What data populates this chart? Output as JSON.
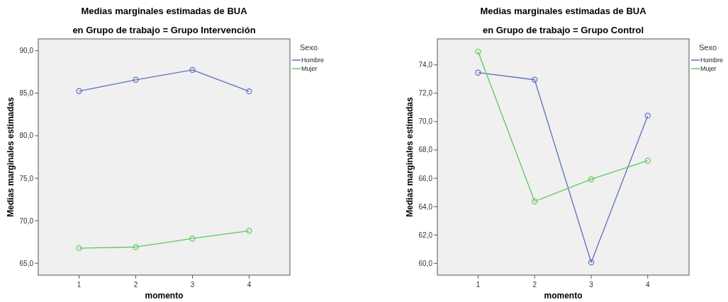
{
  "chart_data": [
    {
      "type": "line",
      "title": "Medias marginales estimadas de BUA",
      "subtitle": "en Grupo de trabajo = Grupo Intervención",
      "xlabel": "momento",
      "ylabel": "Medias marginales estimadas",
      "legend_title": "Sexo",
      "legend": "right",
      "marker": "circle",
      "grid": false,
      "x": [
        1,
        2,
        3,
        4
      ],
      "series": [
        {
          "name": "Hombre",
          "color": "#5b6fc1",
          "values": [
            85.26,
            86.59,
            87.75,
            85.23
          ]
        },
        {
          "name": "Mujer",
          "color": "#5ec95e",
          "values": [
            66.77,
            66.91,
            67.91,
            68.82
          ]
        }
      ],
      "xlim": [
        0.28,
        4.72
      ],
      "xticks": [
        1,
        2,
        3,
        4
      ],
      "ylim": [
        63.6,
        91.4
      ],
      "yticks": [
        {
          "value": 65,
          "label": "65,0"
        },
        {
          "value": 70,
          "label": "70,0"
        },
        {
          "value": 75,
          "label": "75,0"
        },
        {
          "value": 80,
          "label": "80,0"
        },
        {
          "value": 85,
          "label": "85,0"
        },
        {
          "value": 90,
          "label": "90,0"
        }
      ]
    },
    {
      "type": "line",
      "title": "Medias marginales estimadas de BUA",
      "subtitle": "en Grupo de trabajo = Grupo Control",
      "xlabel": "momento",
      "ylabel": "Medias marginales estimadas",
      "legend_title": "Sexo",
      "legend": "right",
      "marker": "circle",
      "grid": false,
      "x": [
        1,
        2,
        3,
        4
      ],
      "series": [
        {
          "name": "Hombre",
          "color": "#5b6fc1",
          "values": [
            73.45,
            72.95,
            60.07,
            70.41
          ]
        },
        {
          "name": "Mujer",
          "color": "#5ec95e",
          "values": [
            74.93,
            64.37,
            65.93,
            67.24
          ]
        }
      ],
      "xlim": [
        0.28,
        4.73
      ],
      "xticks": [
        1,
        2,
        3,
        4
      ],
      "ylim": [
        59.17,
        75.83
      ],
      "yticks": [
        {
          "value": 60,
          "label": "60,0"
        },
        {
          "value": 62,
          "label": "62,0"
        },
        {
          "value": 64,
          "label": "64,0"
        },
        {
          "value": 66,
          "label": "66,0"
        },
        {
          "value": 68,
          "label": "68,0"
        },
        {
          "value": 70,
          "label": "70,0"
        },
        {
          "value": 72,
          "label": "72,0"
        },
        {
          "value": 74,
          "label": "74,0"
        }
      ]
    }
  ]
}
